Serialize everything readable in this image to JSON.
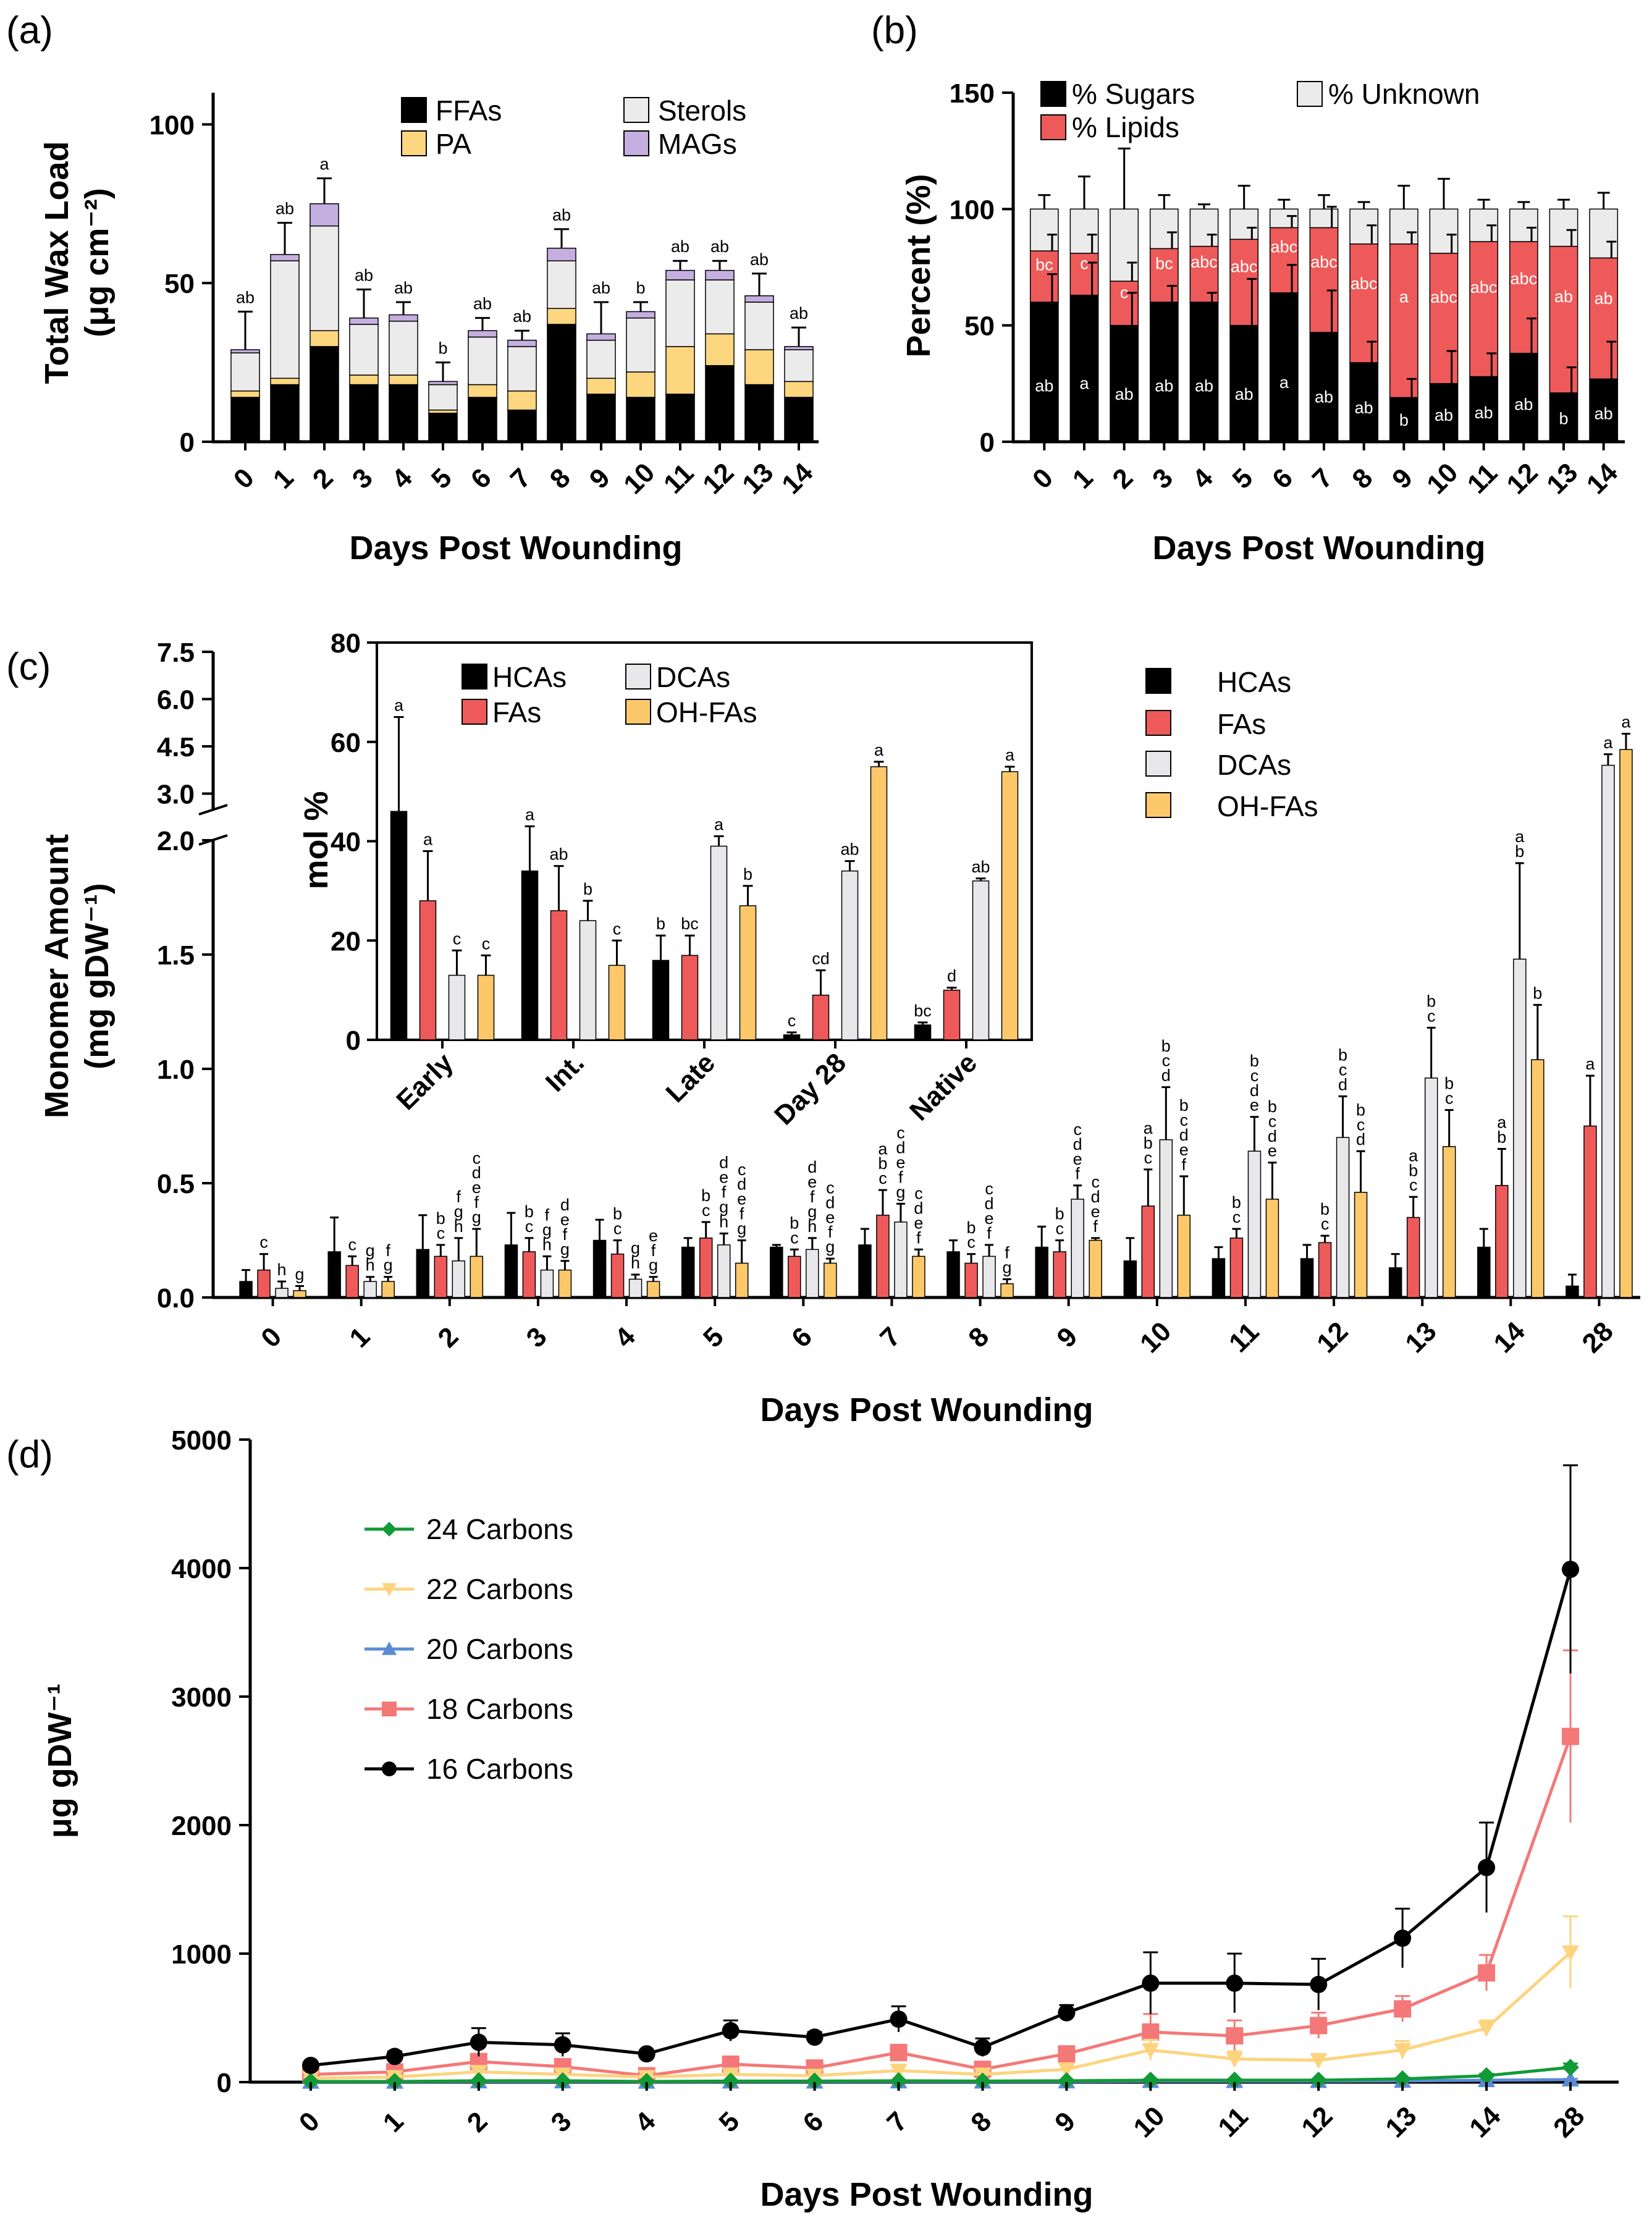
{
  "colors": {
    "ffa": "#000000",
    "pa": "#fdd680",
    "sterols": "#ebebeb",
    "mags": "#c5aee0",
    "sugars": "#000000",
    "lipids": "#ee5a5a",
    "unknown": "#ebebeb",
    "hca": "#000000",
    "fa": "#ee5a5a",
    "dca": "#e8e8ea",
    "ohfa": "#fcc86a",
    "c24": "#119a36",
    "c22": "#fdd47e",
    "c20": "#5b8bd6",
    "c18": "#f47878",
    "c16": "#000000"
  },
  "chart_data": [
    {
      "id": "a",
      "panel_label": "(a)",
      "type": "bar",
      "stacked": true,
      "title": "",
      "xlabel": "Days Post Wounding",
      "ylabel_main": "Total Wax Load",
      "ylabel_unit": "(μg cm⁻²)",
      "ylim": [
        0,
        110
      ],
      "yticks": [
        0,
        50,
        100
      ],
      "categories": [
        "0",
        "1",
        "2",
        "3",
        "4",
        "5",
        "6",
        "7",
        "8",
        "9",
        "10",
        "11",
        "12",
        "13",
        "14"
      ],
      "series": [
        {
          "name": "FFAs",
          "color_key": "ffa",
          "values": [
            14,
            18,
            30,
            18,
            18,
            9,
            14,
            10,
            37,
            15,
            14,
            15,
            24,
            18,
            14
          ]
        },
        {
          "name": "PA",
          "color_key": "pa",
          "values": [
            2,
            2,
            5,
            3,
            3,
            1,
            4,
            6,
            5,
            5,
            8,
            15,
            10,
            11,
            5
          ]
        },
        {
          "name": "Sterols",
          "color_key": "sterols",
          "values": [
            12,
            37,
            33,
            16,
            17,
            8,
            15,
            14,
            15,
            12,
            17,
            21,
            17,
            15,
            10
          ]
        },
        {
          "name": "MAGs",
          "color_key": "mags",
          "values": [
            1,
            2,
            7,
            2,
            2,
            1,
            2,
            2,
            4,
            2,
            2,
            3,
            3,
            2,
            1
          ]
        }
      ],
      "error_top": [
        12,
        10,
        8,
        9,
        4,
        6,
        4,
        3,
        6,
        10,
        3,
        3,
        3,
        7,
        6
      ],
      "letters": [
        "ab",
        "ab",
        "a",
        "ab",
        "ab",
        "b",
        "ab",
        "ab",
        "ab",
        "ab",
        "b",
        "ab",
        "ab",
        "ab",
        "ab"
      ],
      "legend": [
        "FFAs",
        "PA",
        "Sterols",
        "MAGs"
      ]
    },
    {
      "id": "b",
      "panel_label": "(b)",
      "type": "bar",
      "stacked": true,
      "title": "",
      "xlabel": "Days Post Wounding",
      "ylabel": "Percent (%)",
      "ylim": [
        0,
        150
      ],
      "yticks": [
        0,
        50,
        100,
        150
      ],
      "categories": [
        "0",
        "1",
        "2",
        "3",
        "4",
        "5",
        "6",
        "7",
        "8",
        "9",
        "10",
        "11",
        "12",
        "13",
        "14"
      ],
      "series": [
        {
          "name": "% Sugars",
          "color_key": "sugars",
          "values": [
            60,
            63,
            50,
            60,
            60,
            50,
            64,
            47,
            34,
            19,
            25,
            28,
            38,
            21,
            27
          ]
        },
        {
          "name": "% Lipids",
          "color_key": "lipids",
          "values": [
            22,
            18,
            19,
            23,
            24,
            37,
            28,
            45,
            51,
            66,
            56,
            58,
            48,
            63,
            52
          ]
        },
        {
          "name": "% Unknown",
          "color_key": "unknown",
          "values": [
            18,
            19,
            31,
            17,
            16,
            13,
            8,
            8,
            15,
            15,
            19,
            14,
            14,
            16,
            21
          ]
        }
      ],
      "sugar_err": [
        12,
        14,
        14,
        7,
        4,
        20,
        12,
        18,
        9,
        8,
        14,
        10,
        15,
        11,
        16
      ],
      "lipid_err": [
        7,
        8,
        8,
        7,
        5,
        5,
        5,
        9,
        8,
        5,
        8,
        7,
        6,
        7,
        7
      ],
      "unknown_err": [
        6,
        14,
        26,
        6,
        2,
        10,
        4,
        6,
        3,
        10,
        13,
        4,
        3,
        4,
        7
      ],
      "sugar_letters": [
        "ab",
        "a",
        "ab",
        "ab",
        "ab",
        "ab",
        "a",
        "ab",
        "ab",
        "b",
        "ab",
        "ab",
        "ab",
        "b",
        "ab"
      ],
      "lipid_letters": [
        "bc",
        "c",
        "c",
        "bc",
        "abc",
        "abc",
        "abc",
        "abc",
        "abc",
        "a",
        "abc",
        "abc",
        "abc",
        "ab",
        "ab"
      ],
      "legend": [
        "% Sugars",
        "% Lipids",
        "% Unknown"
      ]
    },
    {
      "id": "c",
      "panel_label": "(c)",
      "type": "bar",
      "title": "",
      "xlabel": "Days Post Wounding",
      "ylabel_main": "Monomer Amount",
      "ylabel_unit": "(mg gDW⁻¹)",
      "ylim_lower": [
        0,
        2.0
      ],
      "yticks_lower": [
        "0.0",
        "0.5",
        "1.0",
        "1.5",
        "2.0"
      ],
      "yticks_upper": [
        "3.0",
        "4.5",
        "6.0",
        "7.5"
      ],
      "categories": [
        "0",
        "1",
        "2",
        "3",
        "4",
        "5",
        "6",
        "7",
        "8",
        "9",
        "10",
        "11",
        "12",
        "13",
        "14",
        "28"
      ],
      "series": [
        {
          "name": "HCAs",
          "color_key": "hca",
          "values": [
            0.07,
            0.2,
            0.21,
            0.23,
            0.25,
            0.22,
            0.22,
            0.23,
            0.2,
            0.22,
            0.16,
            0.17,
            0.17,
            0.13,
            0.22,
            0.05
          ],
          "errors": [
            0.05,
            0.15,
            0.15,
            0.14,
            0.09,
            0.04,
            0.01,
            0.07,
            0.05,
            0.09,
            0.1,
            0.05,
            0.06,
            0.06,
            0.08,
            0.05
          ]
        },
        {
          "name": "FAs",
          "color_key": "fa",
          "values": [
            0.12,
            0.14,
            0.18,
            0.2,
            0.19,
            0.26,
            0.18,
            0.36,
            0.15,
            0.2,
            0.4,
            0.26,
            0.24,
            0.35,
            0.49,
            0.75
          ],
          "errors": [
            0.07,
            0.04,
            0.05,
            0.06,
            0.06,
            0.07,
            0.03,
            0.11,
            0.04,
            0.05,
            0.16,
            0.04,
            0.03,
            0.09,
            0.16,
            0.22
          ]
        },
        {
          "name": "DCAs",
          "color_key": "dca",
          "values": [
            0.04,
            0.07,
            0.16,
            0.12,
            0.08,
            0.23,
            0.21,
            0.33,
            0.18,
            0.43,
            0.69,
            0.64,
            0.7,
            0.96,
            1.48,
            3.9
          ],
          "errors": [
            0.03,
            0.02,
            0.1,
            0.06,
            0.02,
            0.05,
            0.05,
            0.08,
            0.05,
            0.06,
            0.23,
            0.15,
            0.18,
            0.22,
            0.42,
            0.35
          ]
        },
        {
          "name": "OH-FAs",
          "color_key": "ohfa",
          "values": [
            0.03,
            0.07,
            0.18,
            0.12,
            0.07,
            0.15,
            0.15,
            0.18,
            0.06,
            0.25,
            0.36,
            0.43,
            0.46,
            0.66,
            1.04,
            4.4
          ],
          "errors": [
            0.02,
            0.02,
            0.12,
            0.04,
            0.02,
            0.1,
            0.02,
            0.03,
            0.02,
            0.01,
            0.17,
            0.16,
            0.18,
            0.16,
            0.24,
            0.5
          ]
        }
      ],
      "letters": {
        "HCAs": [
          "",
          "",
          "",
          "",
          "",
          "",
          "",
          "",
          "",
          "",
          "",
          "",
          "",
          "",
          "",
          ""
        ],
        "FAs": [
          "c",
          "c",
          "b c",
          "b c",
          "b c",
          "b c",
          "b c",
          "a b c",
          "b c",
          "b c",
          "a b c",
          "b c",
          "b c",
          "a b c",
          "a b",
          "a"
        ],
        "DCAs": [
          "h",
          "g h",
          "f g h",
          "f g h",
          "g h",
          "d e f g h",
          "d e f g h",
          "c d e f g",
          "c d e f",
          "c d e f",
          "b c d",
          "b c d e",
          "b c d",
          "b c",
          "a b",
          "a"
        ],
        "OH-FAs": [
          "g",
          "f g",
          "c d e f g",
          "d e f g",
          "e f g",
          "c d e f g",
          "c d e f g",
          "c d e f",
          "f g",
          "c d e f",
          "b c d e f",
          "b c d e",
          "b c d",
          "b c",
          "b",
          "a"
        ]
      },
      "legend": [
        "HCAs",
        "FAs",
        "DCAs",
        "OH-FAs"
      ]
    },
    {
      "id": "c-inset",
      "type": "bar",
      "title": "",
      "ylabel": "mol %",
      "ylim": [
        0,
        80
      ],
      "yticks": [
        0,
        20,
        40,
        60,
        80
      ],
      "categories": [
        "Early",
        "Int.",
        "Late",
        "Day 28",
        "Native"
      ],
      "series": [
        {
          "name": "HCAs",
          "color_key": "hca",
          "values": [
            46,
            34,
            16,
            1,
            3
          ],
          "errors": [
            19,
            9,
            5,
            0.5,
            0.5
          ]
        },
        {
          "name": "FAs",
          "color_key": "fa",
          "values": [
            28,
            26,
            17,
            9,
            10
          ],
          "errors": [
            10,
            9,
            4,
            5,
            0.5
          ]
        },
        {
          "name": "DCAs",
          "color_key": "dca",
          "values": [
            13,
            24,
            39,
            34,
            32
          ],
          "errors": [
            5,
            4,
            2,
            2,
            0.5
          ]
        },
        {
          "name": "OH-FAs",
          "color_key": "ohfa",
          "values": [
            13,
            15,
            27,
            55,
            54
          ],
          "errors": [
            4,
            5,
            4,
            1,
            1
          ]
        }
      ],
      "letters": {
        "HCAs": [
          "a",
          "a",
          "b",
          "c",
          "bc"
        ],
        "FAs": [
          "a",
          "ab",
          "bc",
          "cd",
          "d"
        ],
        "DCAs": [
          "c",
          "b",
          "a",
          "ab",
          "ab"
        ],
        "OH-FAs": [
          "c",
          "c",
          "b",
          "a",
          "a"
        ]
      },
      "legend": [
        "HCAs",
        "FAs",
        "DCAs",
        "OH-FAs"
      ]
    },
    {
      "id": "d",
      "panel_label": "(d)",
      "type": "line",
      "title": "",
      "xlabel": "Days Post Wounding",
      "ylabel": "μg gDW⁻¹",
      "ylim": [
        0,
        5000
      ],
      "yticks": [
        0,
        1000,
        2000,
        3000,
        4000,
        5000
      ],
      "categories": [
        "0",
        "1",
        "2",
        "3",
        "4",
        "5",
        "6",
        "7",
        "8",
        "9",
        "10",
        "11",
        "12",
        "13",
        "14",
        "28"
      ],
      "series": [
        {
          "name": "24 Carbons",
          "color_key": "c24",
          "marker": "diamond",
          "values": [
            5,
            5,
            10,
            10,
            5,
            8,
            8,
            10,
            8,
            10,
            15,
            15,
            15,
            25,
            50,
            115
          ],
          "errors": [
            3,
            3,
            5,
            5,
            3,
            4,
            4,
            5,
            4,
            5,
            8,
            8,
            8,
            10,
            15,
            30
          ]
        },
        {
          "name": "22 Carbons",
          "color_key": "c22",
          "marker": "triangle-down",
          "values": [
            30,
            40,
            80,
            60,
            40,
            60,
            50,
            90,
            60,
            100,
            250,
            180,
            170,
            250,
            420,
            1010
          ],
          "errors": [
            10,
            15,
            30,
            25,
            10,
            20,
            15,
            30,
            20,
            30,
            80,
            60,
            50,
            70,
            60,
            280
          ]
        },
        {
          "name": "20 Carbons",
          "color_key": "c20",
          "marker": "triangle-up",
          "values": [
            3,
            3,
            5,
            5,
            3,
            4,
            4,
            5,
            4,
            5,
            8,
            8,
            8,
            10,
            15,
            20
          ],
          "errors": [
            2,
            2,
            3,
            3,
            2,
            2,
            2,
            3,
            2,
            3,
            4,
            4,
            4,
            5,
            5,
            5
          ]
        },
        {
          "name": "18 Carbons",
          "color_key": "c18",
          "marker": "square",
          "values": [
            60,
            80,
            160,
            120,
            50,
            140,
            110,
            230,
            100,
            220,
            390,
            360,
            440,
            570,
            850,
            2690
          ],
          "errors": [
            20,
            30,
            60,
            50,
            20,
            50,
            40,
            60,
            40,
            50,
            140,
            120,
            100,
            100,
            140,
            670
          ]
        },
        {
          "name": "16 Carbons",
          "color_key": "c16",
          "marker": "circle",
          "values": [
            130,
            200,
            310,
            290,
            220,
            400,
            350,
            490,
            270,
            540,
            770,
            770,
            760,
            1120,
            1670,
            3990
          ],
          "errors": [
            30,
            40,
            110,
            90,
            30,
            80,
            40,
            100,
            70,
            60,
            240,
            230,
            200,
            230,
            350,
            810
          ]
        }
      ],
      "legend": [
        "24 Carbons",
        "22 Carbons",
        "20 Carbons",
        "18 Carbons",
        "16 Carbons"
      ]
    }
  ]
}
